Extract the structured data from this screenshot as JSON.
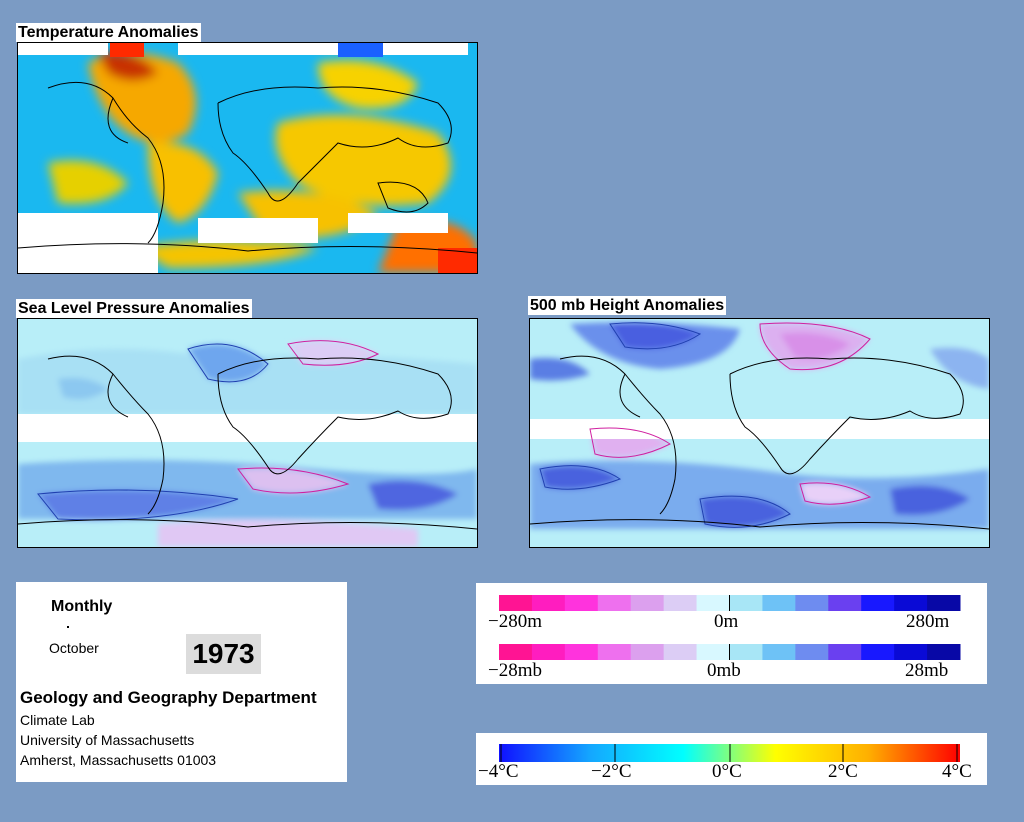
{
  "panels": {
    "temperature": {
      "title": "Temperature Anomalies"
    },
    "slp": {
      "title": "Sea Level Pressure Anomalies"
    },
    "height500": {
      "title": "500 mb Height Anomalies"
    }
  },
  "info": {
    "period": "Monthly",
    "month": "October",
    "year": "1973",
    "department": "Geology and Geography Department",
    "address_lines": [
      "Climate Lab",
      "University of Massachusetts",
      "Amherst, Massachusetts 01003"
    ]
  },
  "legends": {
    "height": {
      "labels": [
        "−280m",
        "0m",
        "280m"
      ],
      "colors": [
        "#ff1493",
        "#ff1dbf",
        "#ff33dd",
        "#ee70ee",
        "#dca0ee",
        "#dccdf5",
        "#d8f8ff",
        "#a8e6f6",
        "#6ec2f6",
        "#6e8cf0",
        "#6a40f0",
        "#1818ff",
        "#0a0ad6",
        "#0808a6"
      ]
    },
    "pressure": {
      "labels": [
        "−28mb",
        "0mb",
        "28mb"
      ],
      "colors": [
        "#ff1493",
        "#ff1dbf",
        "#ff33dd",
        "#ee70ee",
        "#dca0ee",
        "#dccdf5",
        "#d8f8ff",
        "#a8e6f6",
        "#6ec2f6",
        "#6e8cf0",
        "#6a40f0",
        "#1818ff",
        "#0a0ad6",
        "#0808a6"
      ]
    },
    "temperature": {
      "labels": [
        "−4°C",
        "−2°C",
        "0°C",
        "2°C",
        "4°C"
      ],
      "gradient_stops": [
        "#1010ff",
        "#14a8ff",
        "#00ffff",
        "#ffff00",
        "#ffb000",
        "#ff0000"
      ]
    }
  }
}
